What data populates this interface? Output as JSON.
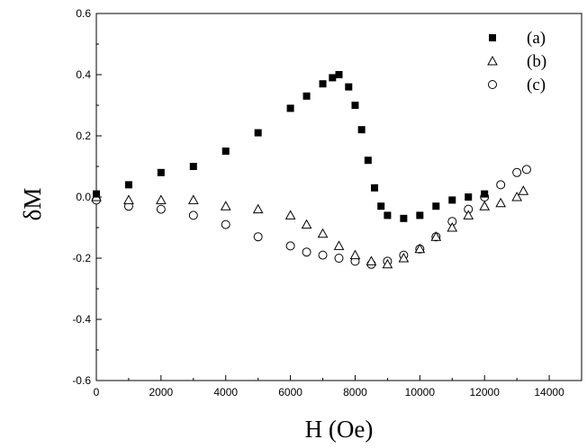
{
  "chart_data": {
    "type": "scatter",
    "xlabel": "H (Oe)",
    "ylabel": "δM",
    "xlim": [
      0,
      15000
    ],
    "ylim": [
      -0.6,
      0.6
    ],
    "x_ticks": [
      "0",
      "2000",
      "4000",
      "6000",
      "8000",
      "10000",
      "12000",
      "14000"
    ],
    "y_ticks": [
      "0.6",
      "0.4",
      "0.2",
      "0.0",
      "-0.2",
      "-0.4",
      "-0.6"
    ],
    "grid": false,
    "legend_position": "top-right",
    "series": [
      {
        "name": "(a)",
        "marker": "filled-square",
        "color": "#000000",
        "x": [
          0,
          1000,
          2000,
          3000,
          4000,
          5000,
          6000,
          6500,
          7000,
          7300,
          7500,
          7800,
          8000,
          8200,
          8400,
          8600,
          8800,
          9000,
          9500,
          10000,
          10500,
          11000,
          11500,
          12000
        ],
        "y": [
          0.01,
          0.04,
          0.08,
          0.1,
          0.15,
          0.21,
          0.29,
          0.33,
          0.37,
          0.39,
          0.4,
          0.36,
          0.3,
          0.22,
          0.12,
          0.03,
          -0.03,
          -0.06,
          -0.07,
          -0.06,
          -0.03,
          -0.01,
          0.0,
          0.01
        ]
      },
      {
        "name": "(b)",
        "marker": "open-triangle",
        "color": "#000000",
        "x": [
          0,
          1000,
          2000,
          3000,
          4000,
          5000,
          6000,
          6500,
          7000,
          7500,
          8000,
          8500,
          9000,
          9500,
          10000,
          10500,
          11000,
          11500,
          12000,
          12500,
          13000,
          13200
        ],
        "y": [
          0.0,
          -0.01,
          -0.01,
          -0.01,
          -0.03,
          -0.04,
          -0.06,
          -0.09,
          -0.12,
          -0.16,
          -0.19,
          -0.21,
          -0.22,
          -0.2,
          -0.17,
          -0.13,
          -0.1,
          -0.06,
          -0.03,
          -0.02,
          0.0,
          0.02
        ]
      },
      {
        "name": "(c)",
        "marker": "open-circle",
        "color": "#000000",
        "x": [
          0,
          1000,
          2000,
          3000,
          4000,
          5000,
          6000,
          6500,
          7000,
          7500,
          8000,
          8500,
          9000,
          9500,
          10000,
          10500,
          11000,
          11500,
          12000,
          12500,
          13000,
          13300
        ],
        "y": [
          -0.01,
          -0.03,
          -0.04,
          -0.06,
          -0.09,
          -0.13,
          -0.16,
          -0.18,
          -0.19,
          -0.2,
          -0.21,
          -0.22,
          -0.21,
          -0.19,
          -0.17,
          -0.13,
          -0.08,
          -0.04,
          0.0,
          0.04,
          0.08,
          0.09
        ]
      }
    ]
  }
}
